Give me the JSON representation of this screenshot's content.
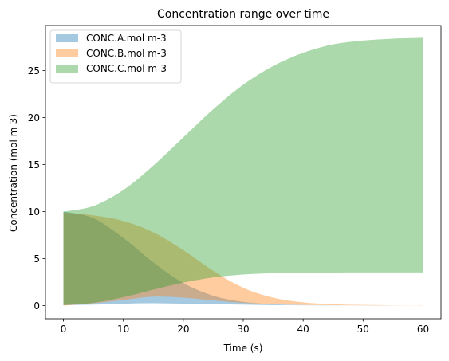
{
  "chart_data": {
    "type": "area",
    "title": "Concentration range over time",
    "xlabel": "Time (s)",
    "ylabel": "Concentration (mol m-3)",
    "xlim": [
      -3,
      63
    ],
    "ylim": [
      -1.4,
      29.8
    ],
    "xticks": [
      0,
      10,
      20,
      30,
      40,
      50,
      60
    ],
    "yticks": [
      0,
      5,
      10,
      15,
      20,
      25
    ],
    "legend_position": "upper-left",
    "x": [
      0,
      5,
      10,
      15,
      20,
      25,
      30,
      35,
      40,
      45,
      50,
      55,
      60
    ],
    "series": [
      {
        "name": "CONC.A.mol m-3",
        "color": "#1f77b4",
        "lower": [
          0.05,
          0.1,
          0.2,
          0.25,
          0.2,
          0.15,
          0.1,
          0.05,
          0.03,
          0.02,
          0.01,
          0.01,
          0.0
        ],
        "upper": [
          10.0,
          9.3,
          7.2,
          4.6,
          2.4,
          1.05,
          0.4,
          0.15,
          0.06,
          0.03,
          0.02,
          0.01,
          0.0
        ]
      },
      {
        "name": "CONC.B.mol m-3",
        "color": "#ff7f0e",
        "lower": [
          0.0,
          0.25,
          0.6,
          0.95,
          0.85,
          0.55,
          0.3,
          0.15,
          0.07,
          0.04,
          0.02,
          0.01,
          0.0
        ],
        "upper": [
          9.9,
          9.6,
          9.0,
          7.8,
          5.9,
          3.7,
          1.9,
          0.85,
          0.35,
          0.15,
          0.07,
          0.03,
          0.02
        ]
      },
      {
        "name": "CONC.C.mol m-3",
        "color": "#2ca02c",
        "lower": [
          0.05,
          0.3,
          0.9,
          1.7,
          2.45,
          3.0,
          3.3,
          3.45,
          3.5,
          3.52,
          3.53,
          3.53,
          3.53
        ],
        "upper": [
          10.0,
          10.6,
          12.3,
          14.9,
          17.9,
          20.9,
          23.5,
          25.5,
          26.9,
          27.8,
          28.2,
          28.4,
          28.5
        ]
      }
    ]
  }
}
